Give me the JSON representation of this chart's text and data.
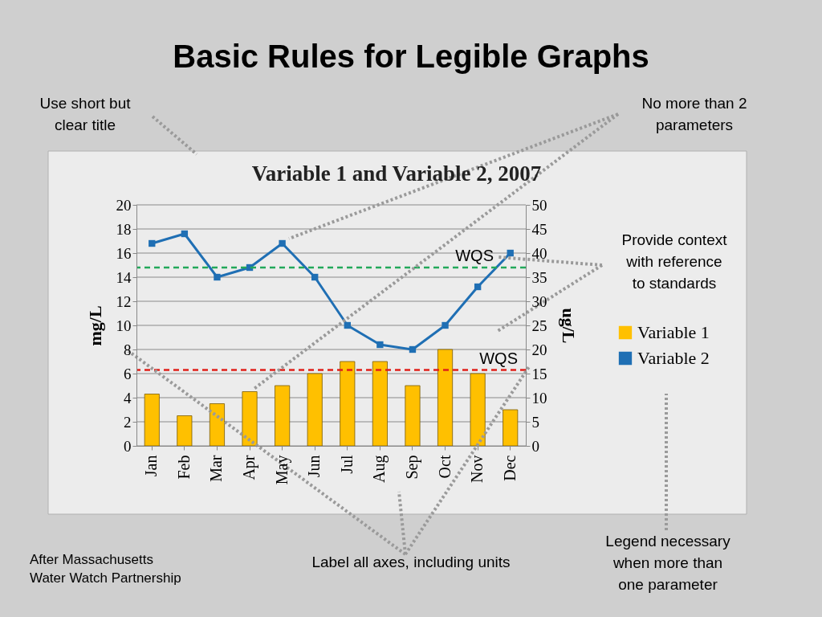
{
  "chart_data": {
    "type": "bar",
    "title": "Basic Rules for Legible Graphs",
    "subtitle": "Variable 1 and Variable 2, 2007",
    "ylabel": "mg/L",
    "y2label": "ug/L",
    "categories": [
      "Jan",
      "Feb",
      "Mar",
      "Apr",
      "May",
      "Jun",
      "Jul",
      "Aug",
      "Sep",
      "Oct",
      "Nov",
      "Dec"
    ],
    "series": [
      {
        "name": "Variable 1",
        "color": "#ffc000",
        "values": [
          4.3,
          2.5,
          3.5,
          4.5,
          5,
          6,
          7,
          7,
          5,
          8,
          6,
          3
        ]
      },
      {
        "name": "Variable 2",
        "type": "line",
        "axis": "y2",
        "color": "#1f6fb4",
        "marker": "square",
        "values": [
          42,
          44,
          35,
          37,
          42,
          35,
          25,
          21,
          20,
          25,
          33,
          40
        ]
      }
    ],
    "ylim": [
      0,
      20
    ],
    "yticks": [
      0,
      2,
      4,
      6,
      8,
      10,
      12,
      14,
      16,
      18,
      20
    ],
    "y2lim": [
      0,
      50
    ],
    "y2ticks": [
      0,
      5,
      10,
      15,
      20,
      25,
      30,
      35,
      40,
      45,
      50
    ],
    "ref_lines": [
      {
        "axis": "y2",
        "value": 37,
        "label": "WQS",
        "color": "#22a85a",
        "line_style": "dashed"
      },
      {
        "axis": "y",
        "value": 6.3,
        "label": "WQS",
        "color": "#e0201a",
        "line_style": "dashed"
      }
    ],
    "grid": "y",
    "legend": "right",
    "annotations": [
      "Use short but\nclear title",
      "No more than 2\nparameters",
      "Provide context\nwith reference\nto standards",
      "Legend necessary\nwhen more than\none parameter",
      "Label all axes, including units",
      "After Massachusetts\nWater Watch Partnership"
    ]
  }
}
